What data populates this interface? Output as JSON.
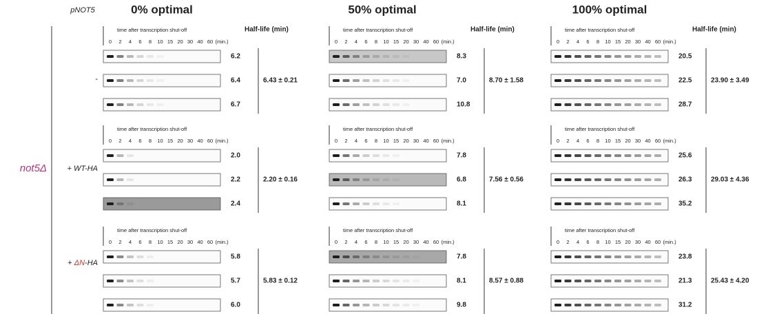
{
  "header": {
    "strain_label": "pNOT5",
    "strain": "not5Δ"
  },
  "rows": [
    {
      "label": "-"
    },
    {
      "label": "+ WT-HA"
    },
    {
      "label_parts": [
        "+ ",
        "ΔN",
        "-HA"
      ]
    }
  ],
  "time_caption": "time after transcription shut-off",
  "timepoints": [
    "0",
    "2",
    "4",
    "6",
    "8",
    "10",
    "15",
    "20",
    "30",
    "40",
    "60"
  ],
  "time_unit": "(min.)",
  "half_life_header": "Half-life (min)",
  "columns": [
    {
      "title": "0% optimal",
      "groups": [
        {
          "half_lives": [
            "6.2",
            "6.4",
            "6.7"
          ],
          "mean": "6.43 ± 0.21"
        },
        {
          "half_lives": [
            "2.0",
            "2.2",
            "2.4"
          ],
          "mean": "2.20 ± 0.16"
        },
        {
          "half_lives": [
            "5.8",
            "5.7",
            "6.0"
          ],
          "mean": "5.83 ± 0.12"
        }
      ]
    },
    {
      "title": "50% optimal",
      "groups": [
        {
          "half_lives": [
            "8.3",
            "7.0",
            "10.8"
          ],
          "mean": "8.70 ± 1.58"
        },
        {
          "half_lives": [
            "7.8",
            "6.8",
            "8.1"
          ],
          "mean": "7.56 ± 0.56"
        },
        {
          "half_lives": [
            "7.8",
            "8.1",
            "9.8"
          ],
          "mean": "8.57 ± 0.88"
        }
      ]
    },
    {
      "title": "100% optimal",
      "groups": [
        {
          "half_lives": [
            "20.5",
            "22.5",
            "28.7"
          ],
          "mean": "23.90 ± 3.49"
        },
        {
          "half_lives": [
            "25.6",
            "26.3",
            "35.2"
          ],
          "mean": "29.03 ± 4.36"
        },
        {
          "half_lives": [
            "23.8",
            "21.3",
            "31.2"
          ],
          "mean": "25.43 ± 4.20"
        }
      ]
    }
  ]
}
